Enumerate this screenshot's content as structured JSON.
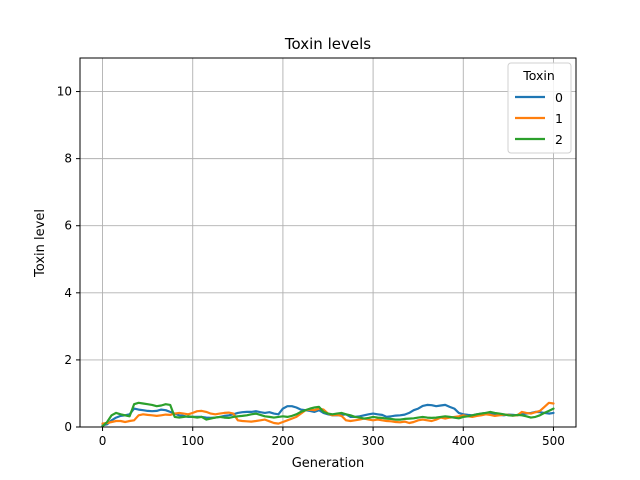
{
  "chart_data": {
    "type": "line",
    "title": "Toxin levels",
    "xlabel": "Generation",
    "ylabel": "Toxin level",
    "xlim": [
      -25,
      525
    ],
    "ylim": [
      0,
      11
    ],
    "xticks": [
      0,
      100,
      200,
      300,
      400,
      500
    ],
    "yticks": [
      0,
      2,
      4,
      6,
      8,
      10
    ],
    "grid": true,
    "legend": {
      "title": "Toxin",
      "placement": "top-right"
    },
    "series": [
      {
        "name": "0",
        "color": "#1f77b4",
        "x": [
          0,
          5,
          10,
          15,
          20,
          25,
          30,
          35,
          40,
          45,
          50,
          55,
          60,
          65,
          70,
          75,
          80,
          85,
          90,
          95,
          100,
          105,
          110,
          115,
          120,
          125,
          130,
          135,
          140,
          145,
          150,
          155,
          160,
          165,
          170,
          175,
          180,
          185,
          190,
          195,
          200,
          205,
          210,
          215,
          220,
          225,
          230,
          235,
          240,
          245,
          250,
          255,
          260,
          265,
          270,
          275,
          280,
          285,
          290,
          295,
          300,
          305,
          310,
          315,
          320,
          325,
          330,
          335,
          340,
          345,
          350,
          355,
          360,
          365,
          370,
          375,
          380,
          385,
          390,
          395,
          400,
          405,
          410,
          415,
          420,
          425,
          430,
          435,
          440,
          445,
          450,
          455,
          460,
          465,
          470,
          475,
          480,
          485,
          490,
          495,
          500
        ],
        "y": [
          0.05,
          0.08,
          0.2,
          0.28,
          0.33,
          0.35,
          0.38,
          0.55,
          0.52,
          0.5,
          0.48,
          0.47,
          0.48,
          0.52,
          0.5,
          0.45,
          0.4,
          0.35,
          0.33,
          0.3,
          0.3,
          0.3,
          0.3,
          0.28,
          0.27,
          0.28,
          0.3,
          0.33,
          0.35,
          0.38,
          0.42,
          0.44,
          0.45,
          0.45,
          0.47,
          0.44,
          0.42,
          0.44,
          0.4,
          0.38,
          0.55,
          0.62,
          0.62,
          0.58,
          0.52,
          0.5,
          0.48,
          0.45,
          0.5,
          0.42,
          0.38,
          0.35,
          0.35,
          0.36,
          0.38,
          0.3,
          0.3,
          0.32,
          0.35,
          0.38,
          0.4,
          0.38,
          0.36,
          0.3,
          0.32,
          0.34,
          0.35,
          0.37,
          0.42,
          0.5,
          0.55,
          0.63,
          0.66,
          0.65,
          0.62,
          0.64,
          0.66,
          0.6,
          0.55,
          0.42,
          0.38,
          0.36,
          0.35,
          0.38,
          0.4,
          0.42,
          0.4,
          0.38,
          0.36,
          0.35,
          0.37,
          0.36,
          0.35,
          0.38,
          0.4,
          0.42,
          0.45,
          0.44,
          0.42,
          0.4,
          0.42
        ]
      },
      {
        "name": "1",
        "color": "#ff7f0e",
        "x": [
          0,
          5,
          10,
          15,
          20,
          25,
          30,
          35,
          40,
          45,
          50,
          55,
          60,
          65,
          70,
          75,
          80,
          85,
          90,
          95,
          100,
          105,
          110,
          115,
          120,
          125,
          130,
          135,
          140,
          145,
          150,
          155,
          160,
          165,
          170,
          175,
          180,
          185,
          190,
          195,
          200,
          205,
          210,
          215,
          220,
          225,
          230,
          235,
          240,
          245,
          250,
          255,
          260,
          265,
          270,
          275,
          280,
          285,
          290,
          295,
          300,
          305,
          310,
          315,
          320,
          325,
          330,
          335,
          340,
          345,
          350,
          355,
          360,
          365,
          370,
          375,
          380,
          385,
          390,
          395,
          400,
          405,
          410,
          415,
          420,
          425,
          430,
          435,
          440,
          445,
          450,
          455,
          460,
          465,
          470,
          475,
          480,
          485,
          490,
          495,
          500
        ],
        "y": [
          0.1,
          0.12,
          0.15,
          0.18,
          0.18,
          0.15,
          0.18,
          0.2,
          0.35,
          0.38,
          0.36,
          0.35,
          0.33,
          0.35,
          0.37,
          0.36,
          0.4,
          0.42,
          0.4,
          0.38,
          0.42,
          0.47,
          0.48,
          0.45,
          0.4,
          0.38,
          0.4,
          0.42,
          0.43,
          0.4,
          0.2,
          0.18,
          0.17,
          0.16,
          0.18,
          0.2,
          0.22,
          0.17,
          0.12,
          0.1,
          0.15,
          0.2,
          0.25,
          0.3,
          0.4,
          0.5,
          0.52,
          0.5,
          0.55,
          0.52,
          0.4,
          0.35,
          0.36,
          0.33,
          0.2,
          0.18,
          0.2,
          0.22,
          0.25,
          0.22,
          0.2,
          0.22,
          0.2,
          0.18,
          0.17,
          0.15,
          0.14,
          0.16,
          0.12,
          0.15,
          0.2,
          0.22,
          0.2,
          0.18,
          0.22,
          0.28,
          0.25,
          0.28,
          0.3,
          0.32,
          0.35,
          0.32,
          0.3,
          0.33,
          0.35,
          0.38,
          0.36,
          0.33,
          0.35,
          0.37,
          0.36,
          0.34,
          0.35,
          0.45,
          0.42,
          0.4,
          0.44,
          0.48,
          0.6,
          0.72,
          0.7
        ]
      },
      {
        "name": "2",
        "color": "#2ca02c",
        "x": [
          0,
          5,
          10,
          15,
          20,
          25,
          30,
          35,
          40,
          45,
          50,
          55,
          60,
          65,
          70,
          75,
          80,
          85,
          90,
          95,
          100,
          105,
          110,
          115,
          120,
          125,
          130,
          135,
          140,
          145,
          150,
          155,
          160,
          165,
          170,
          175,
          180,
          185,
          190,
          195,
          200,
          205,
          210,
          215,
          220,
          225,
          230,
          235,
          240,
          245,
          250,
          255,
          260,
          265,
          270,
          275,
          280,
          285,
          290,
          295,
          300,
          305,
          310,
          315,
          320,
          325,
          330,
          335,
          340,
          345,
          350,
          355,
          360,
          365,
          370,
          375,
          380,
          385,
          390,
          395,
          400,
          405,
          410,
          415,
          420,
          425,
          430,
          435,
          440,
          445,
          450,
          455,
          460,
          465,
          470,
          475,
          480,
          485,
          490,
          495,
          500
        ],
        "y": [
          0.02,
          0.15,
          0.35,
          0.42,
          0.38,
          0.35,
          0.32,
          0.68,
          0.72,
          0.7,
          0.68,
          0.66,
          0.62,
          0.64,
          0.68,
          0.66,
          0.3,
          0.28,
          0.3,
          0.32,
          0.3,
          0.28,
          0.3,
          0.22,
          0.25,
          0.28,
          0.3,
          0.28,
          0.27,
          0.3,
          0.32,
          0.33,
          0.35,
          0.38,
          0.4,
          0.36,
          0.32,
          0.3,
          0.28,
          0.3,
          0.32,
          0.3,
          0.33,
          0.38,
          0.45,
          0.5,
          0.55,
          0.58,
          0.6,
          0.45,
          0.4,
          0.38,
          0.4,
          0.42,
          0.38,
          0.35,
          0.3,
          0.28,
          0.25,
          0.27,
          0.3,
          0.28,
          0.27,
          0.25,
          0.24,
          0.22,
          0.22,
          0.24,
          0.25,
          0.26,
          0.28,
          0.3,
          0.28,
          0.27,
          0.28,
          0.3,
          0.32,
          0.3,
          0.28,
          0.26,
          0.3,
          0.32,
          0.35,
          0.38,
          0.4,
          0.42,
          0.45,
          0.42,
          0.4,
          0.38,
          0.35,
          0.34,
          0.36,
          0.35,
          0.32,
          0.28,
          0.3,
          0.35,
          0.42,
          0.48,
          0.55
        ]
      }
    ]
  }
}
